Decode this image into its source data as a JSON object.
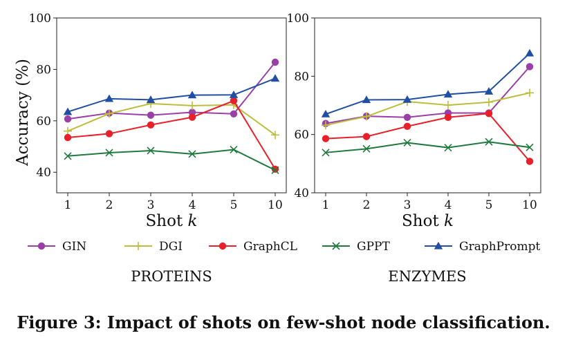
{
  "figure": {
    "caption": "Figure 3: Impact of shots on few-shot node classification."
  },
  "colors": {
    "GIN": "#9b3fa8",
    "DGI": "#bdbd3a",
    "GraphCL": "#e8202a",
    "GPPT": "#1e7a3c",
    "GraphPrompt": "#1f4ea3",
    "axis": "#222222"
  },
  "legend": [
    {
      "name": "GIN",
      "marker": "circle"
    },
    {
      "name": "DGI",
      "marker": "plus"
    },
    {
      "name": "GraphCL",
      "marker": "circle"
    },
    {
      "name": "GPPT",
      "marker": "x"
    },
    {
      "name": "GraphPrompt",
      "marker": "triangle"
    }
  ],
  "chart_data": [
    {
      "type": "line",
      "title": "PROTEINS",
      "xlabel_text": "Shot ",
      "xlabel_var": "k",
      "ylabel": "Accuracy (%)",
      "categories": [
        "1",
        "2",
        "3",
        "4",
        "5",
        "10"
      ],
      "ylim": [
        32,
        100
      ],
      "yticks": [
        40,
        60,
        80,
        100
      ],
      "grid": false,
      "legend_position": "below",
      "series": [
        {
          "name": "GIN",
          "marker": "circle",
          "values": [
            60.7,
            63.0,
            62.2,
            63.3,
            62.7,
            82.8
          ]
        },
        {
          "name": "DGI",
          "marker": "plus",
          "values": [
            56.0,
            62.8,
            66.7,
            65.9,
            66.2,
            54.5
          ]
        },
        {
          "name": "GraphCL",
          "marker": "circle",
          "values": [
            53.5,
            55.0,
            58.4,
            61.4,
            67.8,
            41.2
          ]
        },
        {
          "name": "GPPT",
          "marker": "x",
          "values": [
            46.3,
            47.6,
            48.4,
            47.1,
            48.8,
            40.8
          ]
        },
        {
          "name": "GraphPrompt",
          "marker": "triangle",
          "values": [
            63.5,
            68.6,
            68.2,
            70.0,
            70.1,
            76.5
          ]
        }
      ]
    },
    {
      "type": "line",
      "title": "ENZYMES",
      "xlabel_text": "Shot ",
      "xlabel_var": "k",
      "ylabel": "",
      "categories": [
        "1",
        "2",
        "3",
        "4",
        "5",
        "10"
      ],
      "ylim": [
        40,
        100
      ],
      "yticks": [
        40,
        60,
        80,
        100
      ],
      "grid": false,
      "legend_position": "below",
      "series": [
        {
          "name": "GIN",
          "marker": "circle",
          "values": [
            63.8,
            66.3,
            65.9,
            67.4,
            67.4,
            83.3
          ]
        },
        {
          "name": "DGI",
          "marker": "plus",
          "values": [
            63.2,
            66.2,
            71.3,
            70.1,
            71.1,
            74.3
          ]
        },
        {
          "name": "GraphCL",
          "marker": "circle",
          "values": [
            58.6,
            59.3,
            62.8,
            65.9,
            67.2,
            50.8
          ]
        },
        {
          "name": "GPPT",
          "marker": "x",
          "values": [
            53.8,
            55.1,
            57.2,
            55.5,
            57.5,
            55.6
          ]
        },
        {
          "name": "GraphPrompt",
          "marker": "triangle",
          "values": [
            67.0,
            71.9,
            72.0,
            73.8,
            74.8,
            87.9
          ]
        }
      ]
    }
  ]
}
